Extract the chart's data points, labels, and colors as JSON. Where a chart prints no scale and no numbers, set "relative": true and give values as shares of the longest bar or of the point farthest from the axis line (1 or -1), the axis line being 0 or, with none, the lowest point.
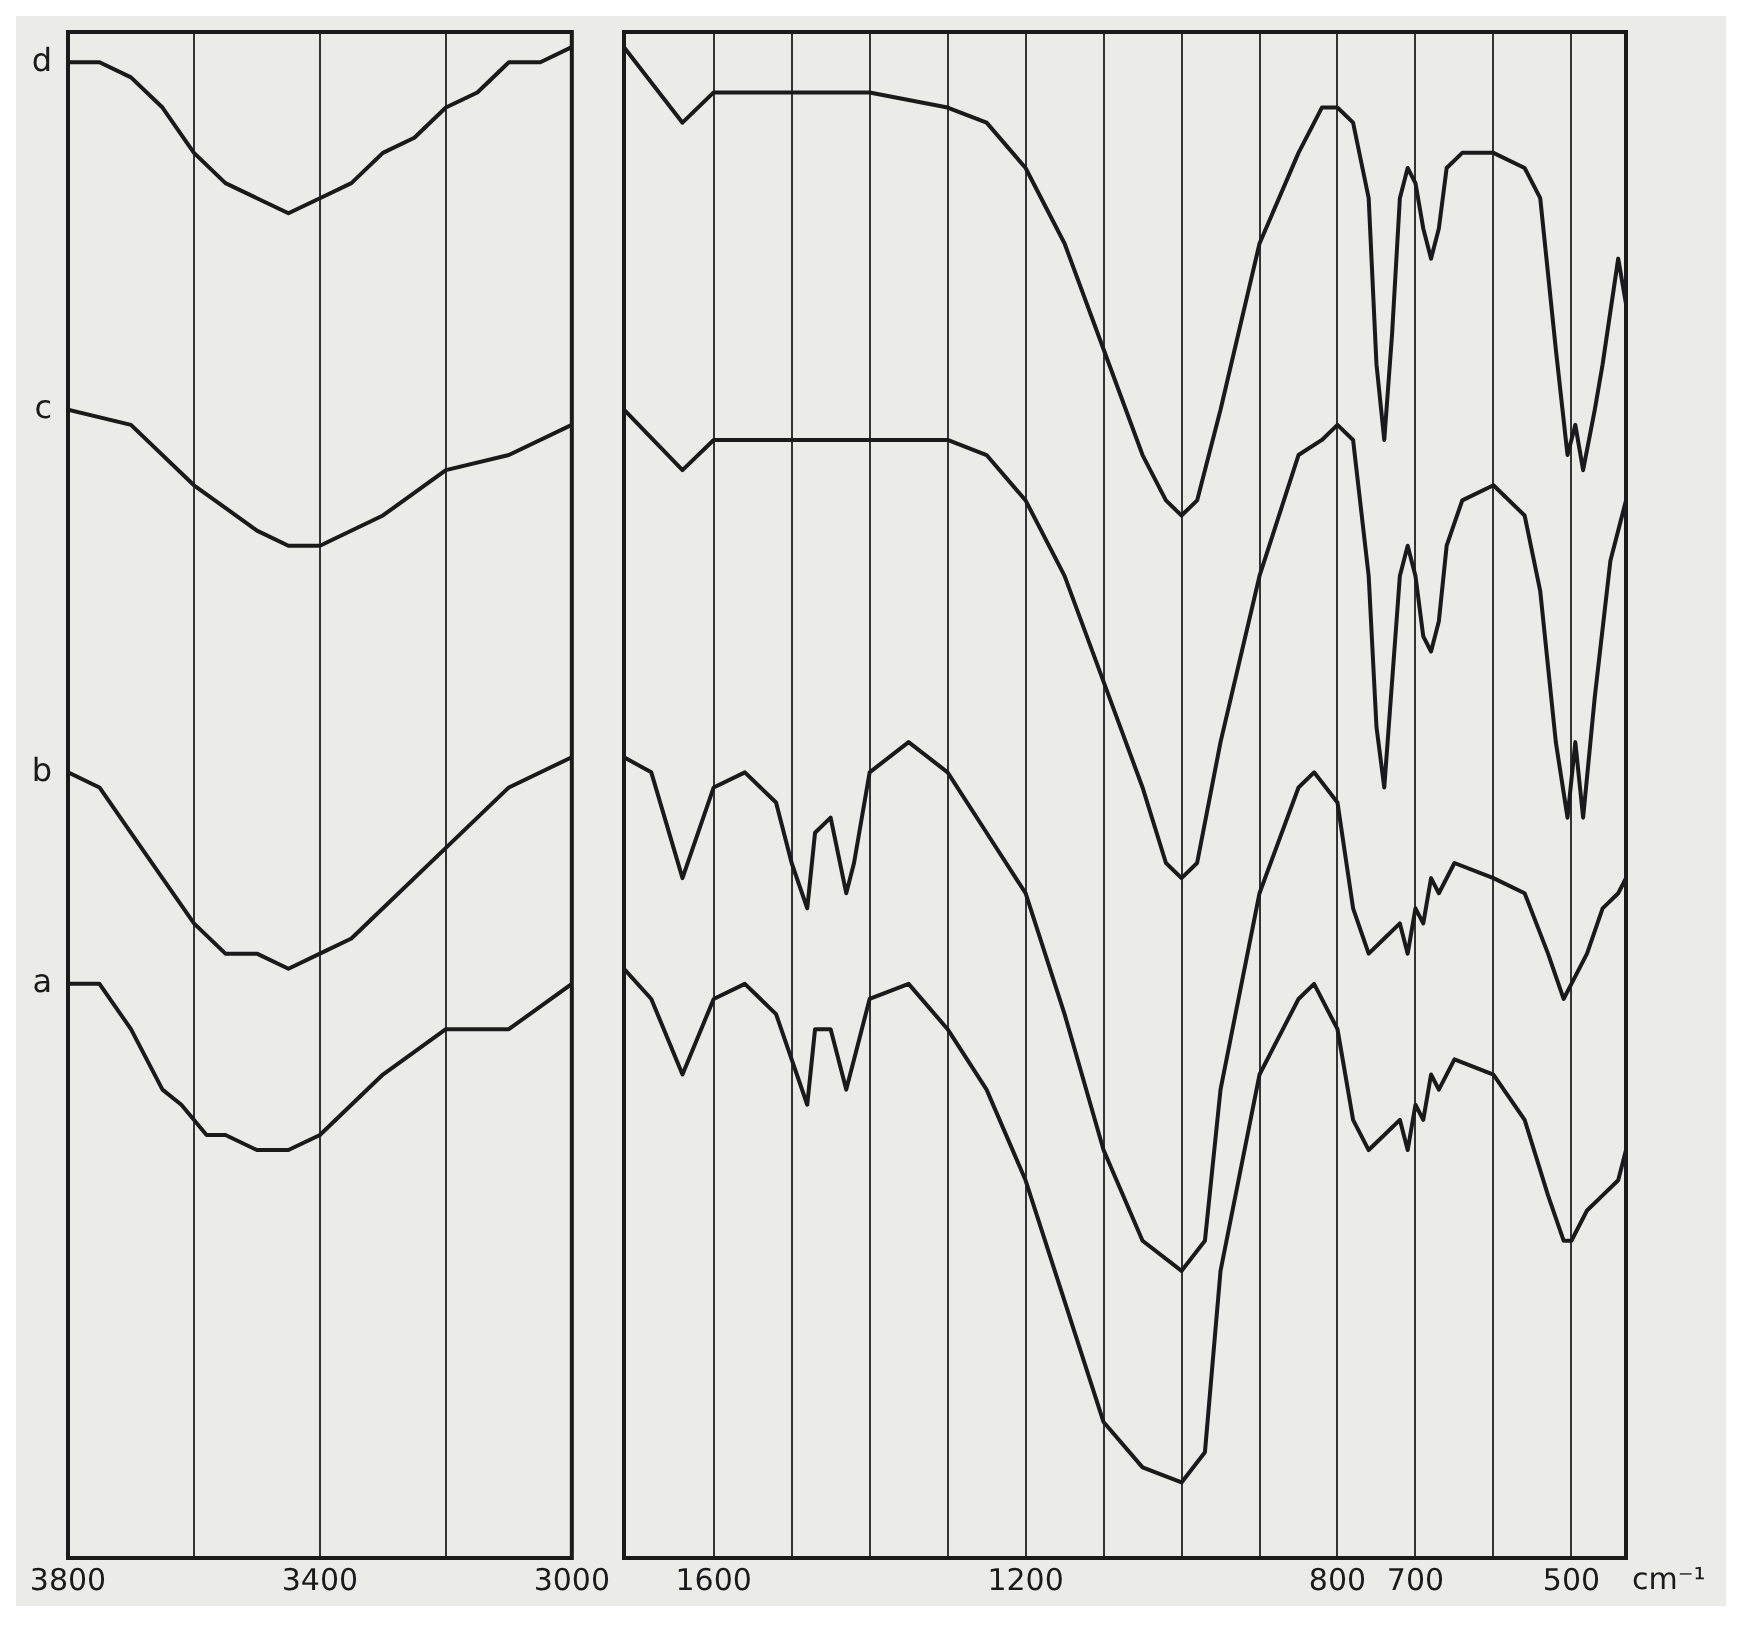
{
  "chart_data": [
    {
      "type": "line",
      "relative": true,
      "xlim": [
        3800,
        3000
      ],
      "xticks": [
        3800,
        {
          "value": 3600,
          "label": null
        },
        3400,
        {
          "value": 3200,
          "label": null
        },
        3000
      ],
      "grid": "x",
      "tick_labels": "x",
      "marker": "none",
      "line_style": "solid",
      "series": [
        {
          "name": "d",
          "color": "#1a1a1a",
          "x": [
            3800,
            3750,
            3700,
            3650,
            3600,
            3550,
            3500,
            3450,
            3400,
            3350,
            3300,
            3250,
            3200,
            3150,
            3100,
            3050,
            3000
          ],
          "values": [
            0.99,
            0.99,
            0.98,
            0.96,
            0.93,
            0.91,
            0.9,
            0.89,
            0.9,
            0.91,
            0.93,
            0.94,
            0.96,
            0.97,
            0.99,
            0.99,
            1.0
          ]
        },
        {
          "name": "c",
          "color": "#1a1a1a",
          "x": [
            3800,
            3700,
            3600,
            3500,
            3450,
            3400,
            3300,
            3200,
            3100,
            3000
          ],
          "values": [
            0.76,
            0.75,
            0.71,
            0.68,
            0.67,
            0.67,
            0.69,
            0.72,
            0.73,
            0.75
          ]
        },
        {
          "name": "b",
          "color": "#1a1a1a",
          "x": [
            3800,
            3750,
            3700,
            3650,
            3600,
            3550,
            3500,
            3450,
            3400,
            3350,
            3300,
            3200,
            3100,
            3000
          ],
          "values": [
            0.52,
            0.51,
            0.48,
            0.45,
            0.42,
            0.4,
            0.4,
            0.39,
            0.4,
            0.41,
            0.43,
            0.47,
            0.51,
            0.53
          ]
        },
        {
          "name": "a",
          "color": "#1a1a1a",
          "x": [
            3800,
            3750,
            3700,
            3650,
            3620,
            3580,
            3550,
            3500,
            3450,
            3400,
            3350,
            3300,
            3200,
            3100,
            3000
          ],
          "values": [
            0.38,
            0.38,
            0.35,
            0.31,
            0.3,
            0.28,
            0.28,
            0.27,
            0.27,
            0.28,
            0.3,
            0.32,
            0.35,
            0.35,
            0.38
          ]
        }
      ]
    },
    {
      "type": "line",
      "relative": true,
      "xlabel": "cm⁻¹",
      "xlim": [
        1715,
        430
      ],
      "xticks": [
        1600,
        {
          "value": 1500,
          "label": null
        },
        {
          "value": 1400,
          "label": null
        },
        {
          "value": 1300,
          "label": null
        },
        1200,
        {
          "value": 1100,
          "label": null
        },
        {
          "value": 1000,
          "label": null
        },
        {
          "value": 900,
          "label": null
        },
        800,
        700,
        {
          "value": 600,
          "label": null
        },
        500
      ],
      "grid": "x",
      "tick_labels": "x",
      "marker": "none",
      "line_style": "solid",
      "series": [
        {
          "color": "#1a1a1a",
          "x": [
            1715,
            1640,
            1600,
            1500,
            1400,
            1300,
            1250,
            1200,
            1150,
            1100,
            1050,
            1020,
            1000,
            980,
            950,
            900,
            850,
            820,
            800,
            780,
            760,
            750,
            740,
            730,
            720,
            710,
            700,
            690,
            680,
            670,
            660,
            640,
            600,
            560,
            540,
            520,
            505,
            495,
            485,
            470,
            460,
            440,
            430
          ],
          "values": [
            1.0,
            0.95,
            0.97,
            0.97,
            0.97,
            0.96,
            0.95,
            0.92,
            0.87,
            0.8,
            0.73,
            0.7,
            0.69,
            0.7,
            0.76,
            0.87,
            0.93,
            0.96,
            0.96,
            0.95,
            0.9,
            0.79,
            0.74,
            0.81,
            0.9,
            0.92,
            0.91,
            0.88,
            0.86,
            0.88,
            0.92,
            0.93,
            0.93,
            0.92,
            0.9,
            0.8,
            0.73,
            0.75,
            0.72,
            0.76,
            0.79,
            0.86,
            0.83
          ]
        },
        {
          "color": "#1a1a1a",
          "x": [
            1715,
            1640,
            1600,
            1500,
            1400,
            1300,
            1250,
            1200,
            1150,
            1100,
            1050,
            1020,
            1000,
            980,
            950,
            900,
            850,
            820,
            800,
            780,
            760,
            750,
            740,
            730,
            720,
            710,
            700,
            690,
            680,
            670,
            660,
            640,
            600,
            560,
            540,
            520,
            505,
            495,
            485,
            470,
            450,
            430
          ],
          "values": [
            0.76,
            0.72,
            0.74,
            0.74,
            0.74,
            0.74,
            0.73,
            0.7,
            0.65,
            0.58,
            0.51,
            0.46,
            0.45,
            0.46,
            0.54,
            0.65,
            0.73,
            0.74,
            0.75,
            0.74,
            0.65,
            0.55,
            0.51,
            0.58,
            0.65,
            0.67,
            0.65,
            0.61,
            0.6,
            0.62,
            0.67,
            0.7,
            0.71,
            0.69,
            0.64,
            0.54,
            0.49,
            0.54,
            0.49,
            0.57,
            0.66,
            0.7
          ]
        },
        {
          "color": "#1a1a1a",
          "x": [
            1715,
            1680,
            1640,
            1600,
            1560,
            1520,
            1500,
            1480,
            1470,
            1450,
            1430,
            1420,
            1400,
            1350,
            1300,
            1250,
            1200,
            1150,
            1100,
            1050,
            1000,
            970,
            950,
            900,
            850,
            830,
            800,
            780,
            760,
            740,
            720,
            710,
            700,
            690,
            680,
            670,
            650,
            600,
            560,
            530,
            510,
            500,
            480,
            460,
            440,
            430
          ],
          "values": [
            0.53,
            0.52,
            0.45,
            0.51,
            0.52,
            0.5,
            0.46,
            0.43,
            0.48,
            0.49,
            0.44,
            0.46,
            0.52,
            0.54,
            0.52,
            0.48,
            0.44,
            0.36,
            0.27,
            0.21,
            0.19,
            0.21,
            0.31,
            0.44,
            0.51,
            0.52,
            0.5,
            0.43,
            0.4,
            0.41,
            0.42,
            0.4,
            0.43,
            0.42,
            0.45,
            0.44,
            0.46,
            0.45,
            0.44,
            0.4,
            0.37,
            0.38,
            0.4,
            0.43,
            0.44,
            0.45
          ]
        },
        {
          "color": "#1a1a1a",
          "x": [
            1715,
            1680,
            1640,
            1600,
            1560,
            1520,
            1500,
            1480,
            1470,
            1450,
            1430,
            1420,
            1400,
            1350,
            1300,
            1250,
            1200,
            1150,
            1100,
            1050,
            1000,
            970,
            950,
            900,
            850,
            830,
            800,
            780,
            760,
            740,
            720,
            710,
            700,
            690,
            680,
            670,
            650,
            600,
            560,
            530,
            510,
            500,
            480,
            460,
            440,
            430
          ],
          "values": [
            0.39,
            0.37,
            0.32,
            0.37,
            0.38,
            0.36,
            0.33,
            0.3,
            0.35,
            0.35,
            0.31,
            0.33,
            0.37,
            0.38,
            0.35,
            0.31,
            0.25,
            0.17,
            0.09,
            0.06,
            0.05,
            0.07,
            0.19,
            0.32,
            0.37,
            0.38,
            0.35,
            0.29,
            0.27,
            0.28,
            0.29,
            0.27,
            0.3,
            0.29,
            0.32,
            0.31,
            0.33,
            0.32,
            0.29,
            0.24,
            0.21,
            0.21,
            0.23,
            0.24,
            0.25,
            0.27
          ]
        }
      ]
    }
  ]
}
